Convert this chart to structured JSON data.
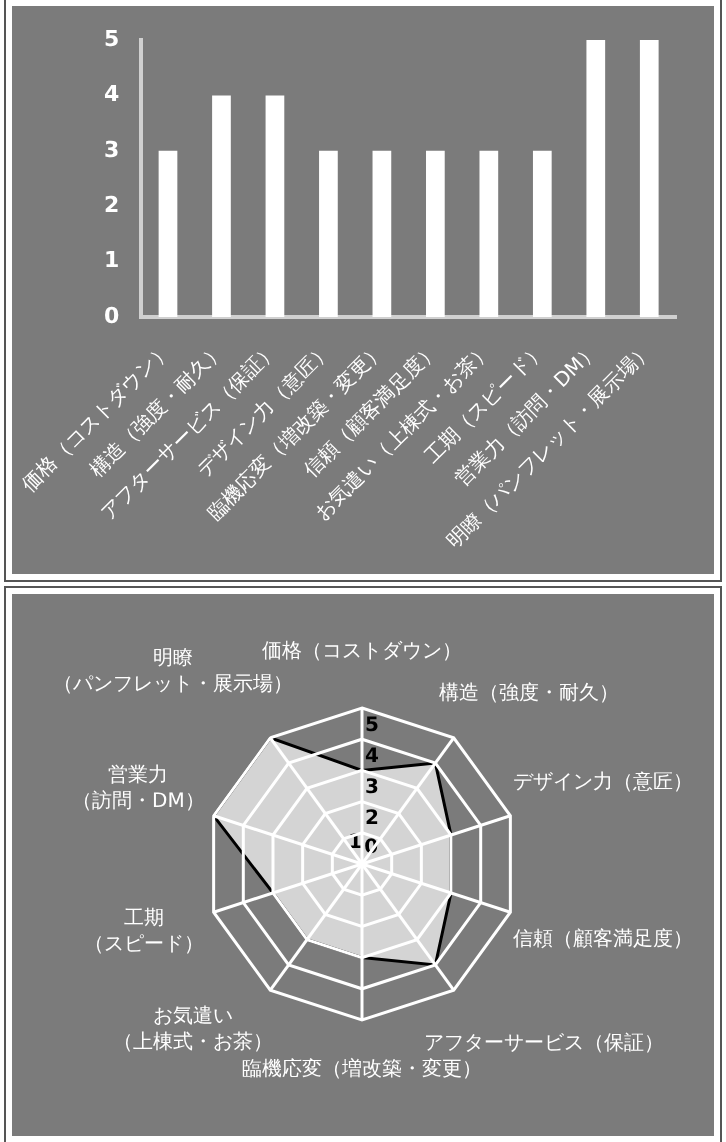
{
  "chart_data": [
    {
      "type": "bar",
      "categories": [
        "価格（コストダウン）",
        "構造（強度・耐久）",
        "アフターサービス（保証）",
        "デザイン力（意匠）",
        "臨機応変（増改築・変更）",
        "信頼（顧客満足度）",
        "お気遣い（上棟式・お茶）",
        "工期（スピード）",
        "営業力（訪問・DM）",
        "明瞭（パンフレット・展示場）"
      ],
      "values": [
        3,
        4,
        4,
        3,
        3,
        3,
        3,
        3,
        5,
        5
      ],
      "color": "#ffffff",
      "ylim": [
        0,
        5
      ],
      "yticks": [
        0,
        1,
        2,
        3,
        4,
        5
      ],
      "grid": false
    },
    {
      "type": "radar",
      "categories": [
        "価格（コストダウン）",
        "構造（強度・耐久）",
        "デザイン力（意匠）",
        "信頼（顧客満足度）",
        "アフターサービス（保証）",
        "臨機応変（増改築・変更）",
        "お気遣い（上棟式・お茶）",
        "工期（スピード）",
        "営業力（訪問・DM）",
        "明瞭（パンフレット・展示場）"
      ],
      "series": [
        {
          "color": "#d4d4d4",
          "values": [
            3,
            4,
            3,
            3,
            4,
            3,
            3,
            3,
            5,
            5
          ]
        }
      ],
      "ylim": [
        0,
        5
      ],
      "yticks": [
        0,
        1,
        2,
        3,
        4,
        5
      ]
    }
  ]
}
